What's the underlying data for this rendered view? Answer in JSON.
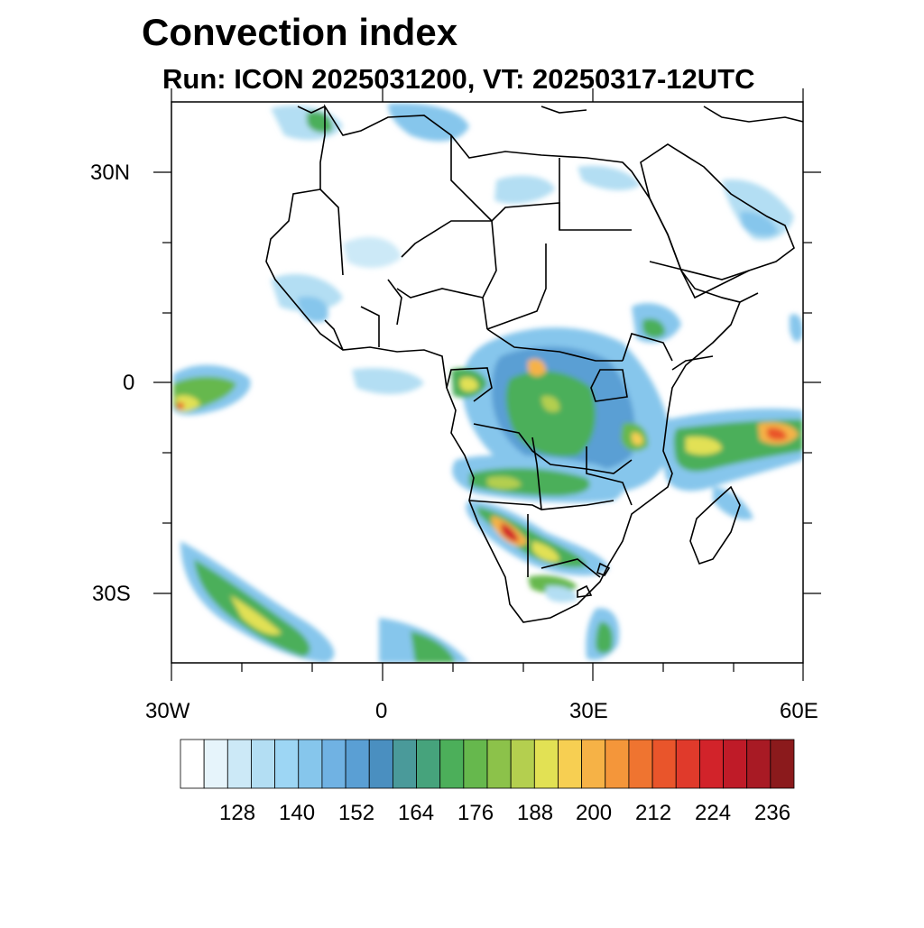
{
  "title": "Convection index",
  "subtitle": "Run: ICON 2025031200,  VT: 20250317-12UTC",
  "axes": {
    "y_ticks": [
      "30N",
      "0",
      "30S"
    ],
    "x_ticks": [
      "30W",
      "0",
      "30E",
      "60E"
    ]
  },
  "colorbar": {
    "labels": [
      "128",
      "140",
      "152",
      "164",
      "176",
      "188",
      "200",
      "212",
      "224",
      "236"
    ],
    "colors": [
      "#ffffff",
      "#e6f4fb",
      "#cce9f7",
      "#b3def3",
      "#9dd6f4",
      "#86c6ec",
      "#70b2e3",
      "#5a9fd4",
      "#4a8fc0",
      "#4a9a9a",
      "#46a37c",
      "#4caf5a",
      "#66b84d",
      "#8cc24a",
      "#b4cf4f",
      "#e2e154",
      "#f7cf52",
      "#f6b246",
      "#f4963a",
      "#ef7430",
      "#e9552b",
      "#e03a2b",
      "#d2232a",
      "#bf1b28",
      "#a81a24",
      "#8b1a1c"
    ],
    "min": 116,
    "max": 242,
    "step": 6
  },
  "map": {
    "lon_range": [
      -30,
      60
    ],
    "lat_range": [
      -40,
      40
    ],
    "field": "convection index",
    "coastline_color": "#000000",
    "land_color": "#ffffff",
    "ocean_color": "#ffffff"
  }
}
